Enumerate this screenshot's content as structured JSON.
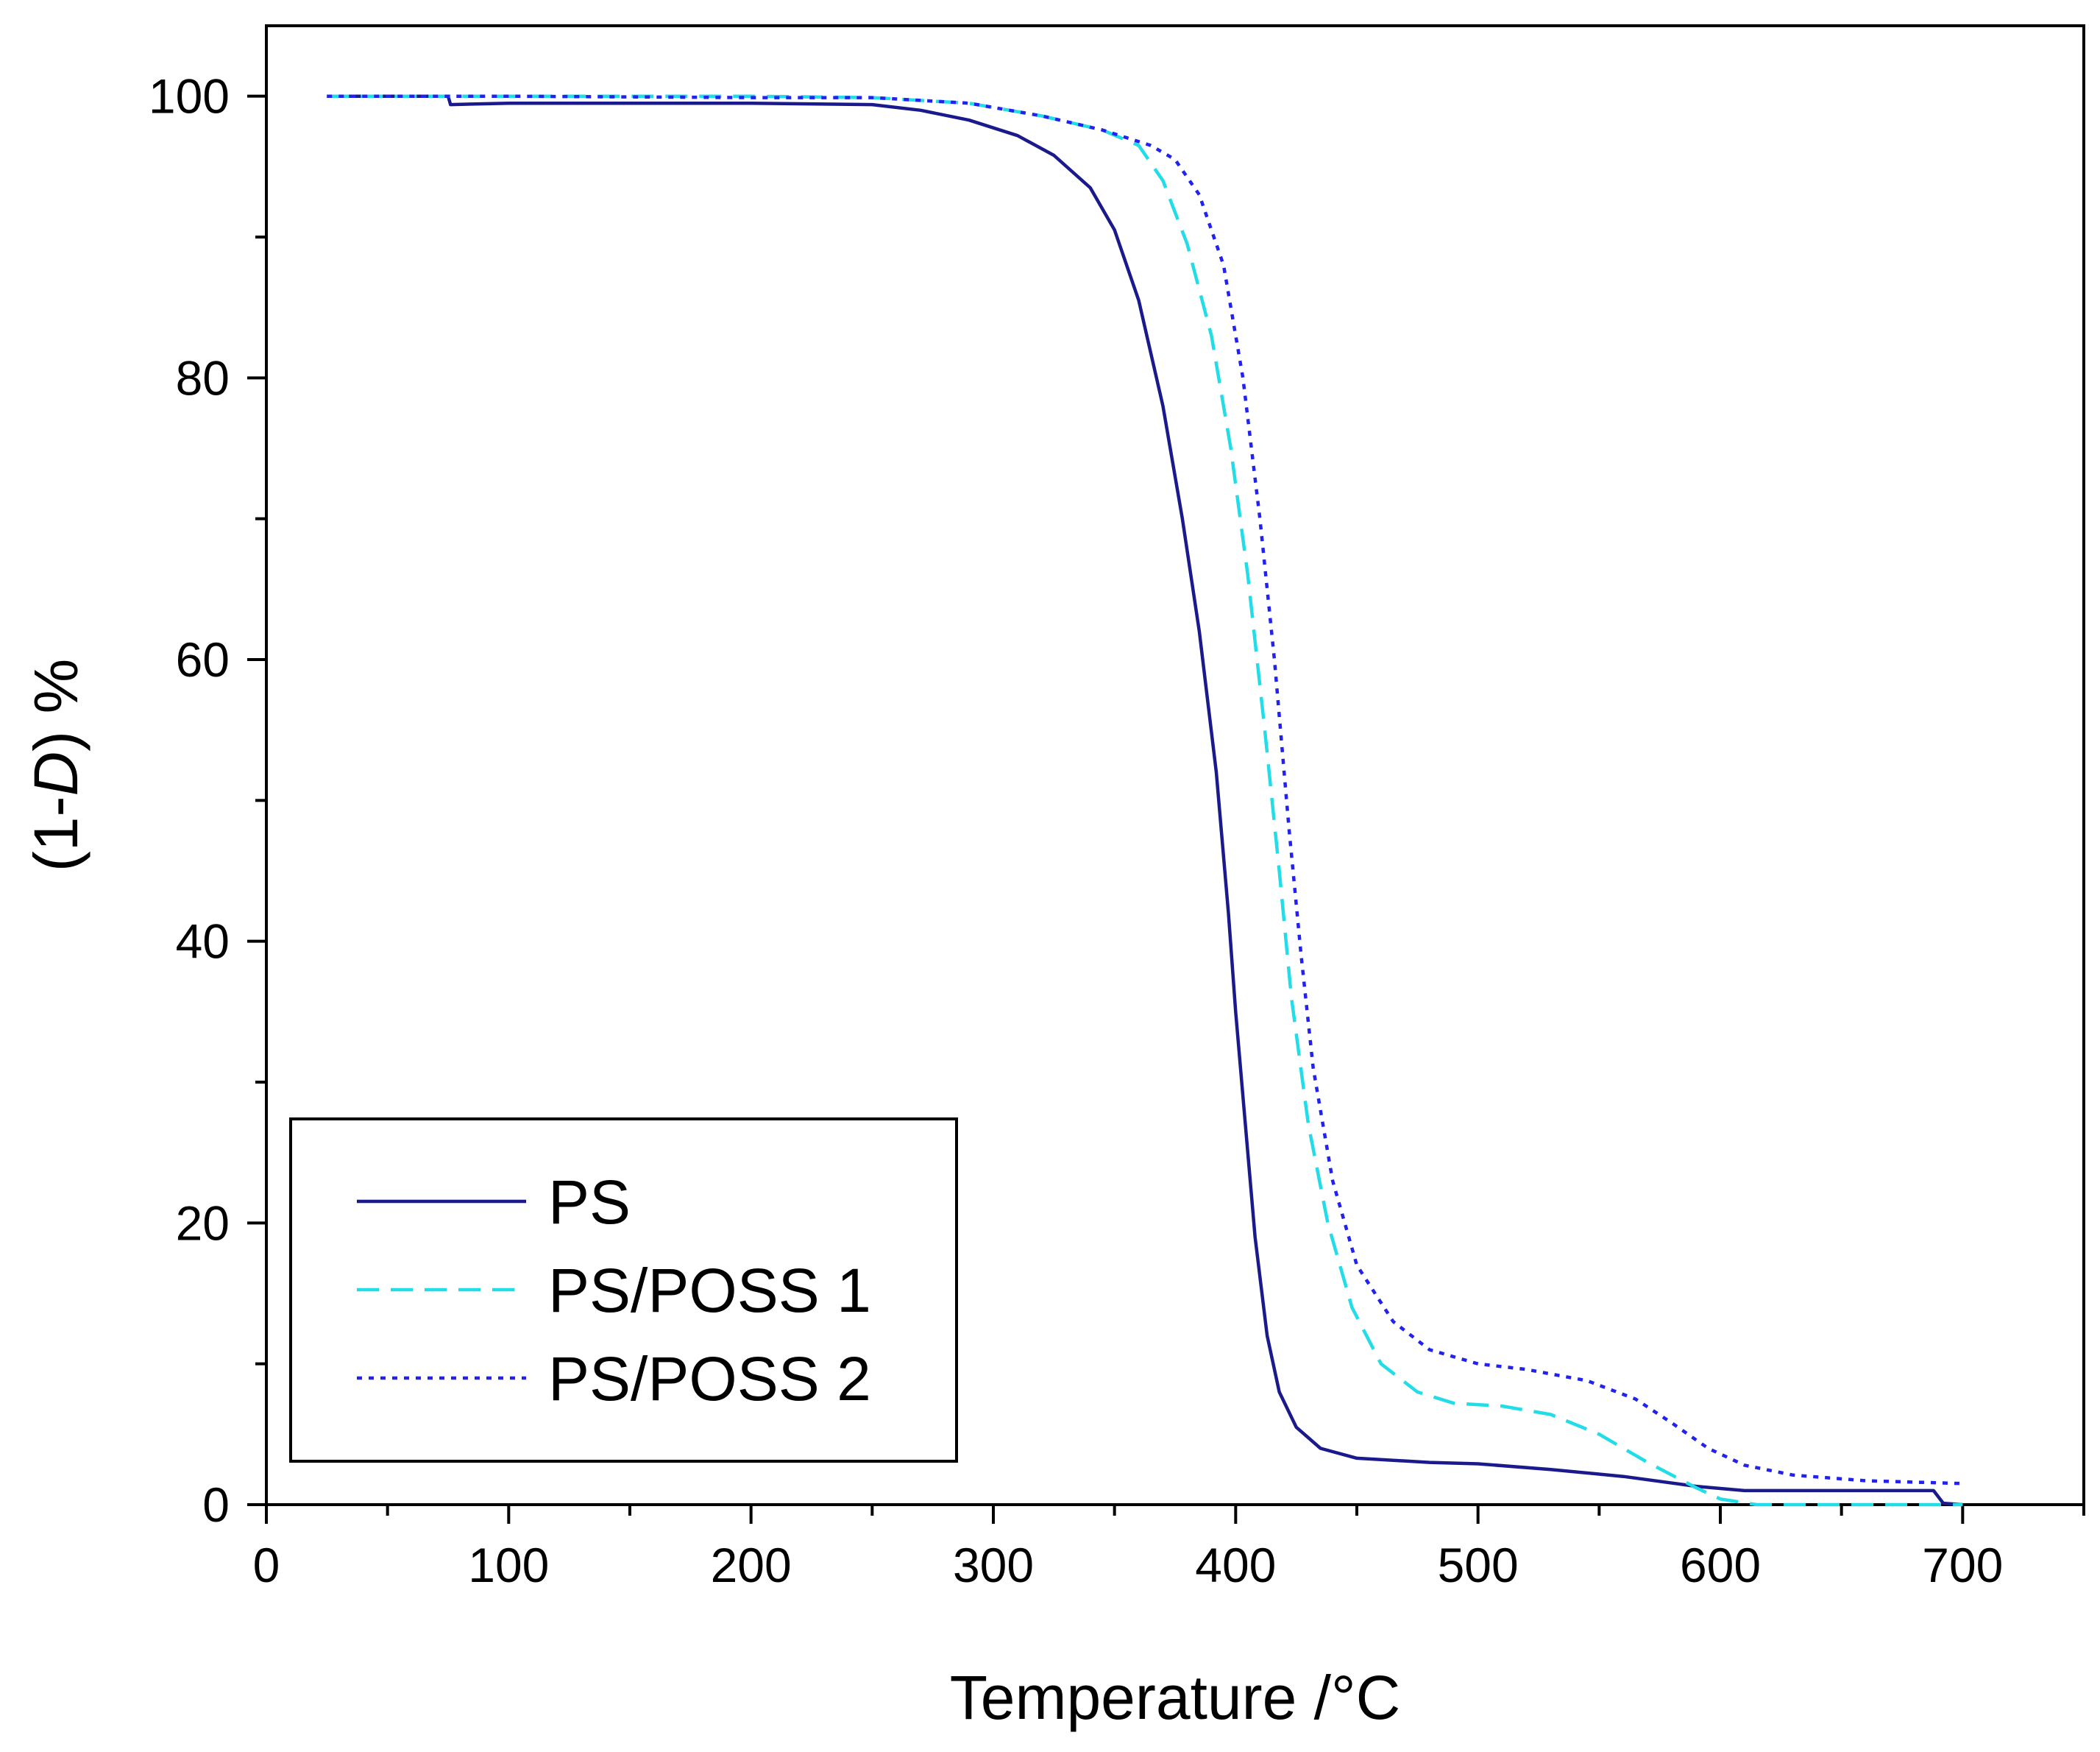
{
  "chart_data": {
    "type": "line",
    "title": "",
    "xlabel": "Temperature /°C",
    "ylabel": {
      "prefix": "(1-",
      "italic": "D",
      "suffix": ") %"
    },
    "xlim": [
      0,
      750
    ],
    "ylim": [
      0,
      105
    ],
    "xticks": [
      0,
      100,
      200,
      300,
      400,
      500,
      600,
      700
    ],
    "yticks": [
      0,
      20,
      40,
      60,
      80,
      100
    ],
    "x_minor_step": 50,
    "y_minor_step": 10,
    "grid": false,
    "legend_position": "bottom-left",
    "series": [
      {
        "name": "PS",
        "color": "#1a1a8c",
        "style": "solid",
        "points": [
          [
            25,
            100
          ],
          [
            75,
            100
          ],
          [
            76,
            99.4
          ],
          [
            100,
            99.5
          ],
          [
            200,
            99.5
          ],
          [
            250,
            99.4
          ],
          [
            270,
            99.0
          ],
          [
            290,
            98.3
          ],
          [
            310,
            97.2
          ],
          [
            325,
            95.8
          ],
          [
            340,
            93.5
          ],
          [
            350,
            90.5
          ],
          [
            360,
            85.5
          ],
          [
            370,
            78
          ],
          [
            378,
            70
          ],
          [
            385,
            62
          ],
          [
            392,
            52
          ],
          [
            397,
            42
          ],
          [
            400,
            35
          ],
          [
            404,
            27
          ],
          [
            408,
            19
          ],
          [
            413,
            12
          ],
          [
            418,
            8
          ],
          [
            425,
            5.5
          ],
          [
            435,
            4.0
          ],
          [
            450,
            3.3
          ],
          [
            480,
            3.0
          ],
          [
            500,
            2.9
          ],
          [
            530,
            2.5
          ],
          [
            560,
            2.0
          ],
          [
            590,
            1.3
          ],
          [
            610,
            1.0
          ],
          [
            650,
            1.0
          ],
          [
            688,
            1.0
          ],
          [
            692,
            0.1
          ],
          [
            700,
            0
          ]
        ]
      },
      {
        "name": "PS/POSS 1",
        "color": "#22dde8",
        "style": "dashed",
        "points": [
          [
            25,
            100
          ],
          [
            100,
            100
          ],
          [
            200,
            100
          ],
          [
            250,
            99.9
          ],
          [
            290,
            99.5
          ],
          [
            320,
            98.6
          ],
          [
            345,
            97.6
          ],
          [
            360,
            96.5
          ],
          [
            370,
            94
          ],
          [
            380,
            89.5
          ],
          [
            390,
            83
          ],
          [
            398,
            75
          ],
          [
            405,
            66
          ],
          [
            412,
            55
          ],
          [
            418,
            45
          ],
          [
            423,
            36
          ],
          [
            430,
            27
          ],
          [
            438,
            20
          ],
          [
            448,
            14
          ],
          [
            460,
            10
          ],
          [
            475,
            8
          ],
          [
            490,
            7.2
          ],
          [
            510,
            7.0
          ],
          [
            530,
            6.4
          ],
          [
            550,
            5.0
          ],
          [
            570,
            3.0
          ],
          [
            590,
            1.2
          ],
          [
            600,
            0.4
          ],
          [
            615,
            0
          ],
          [
            700,
            0
          ]
        ]
      },
      {
        "name": "PS/POSS 2",
        "color": "#2222ee",
        "style": "dotted",
        "points": [
          [
            25,
            100
          ],
          [
            100,
            100
          ],
          [
            200,
            99.9
          ],
          [
            250,
            99.9
          ],
          [
            290,
            99.5
          ],
          [
            320,
            98.6
          ],
          [
            345,
            97.6
          ],
          [
            365,
            96.5
          ],
          [
            375,
            95.5
          ],
          [
            385,
            93
          ],
          [
            395,
            88
          ],
          [
            403,
            80
          ],
          [
            410,
            70
          ],
          [
            416,
            60
          ],
          [
            422,
            48
          ],
          [
            427,
            39
          ],
          [
            432,
            31
          ],
          [
            440,
            23
          ],
          [
            450,
            17
          ],
          [
            465,
            13
          ],
          [
            480,
            11
          ],
          [
            500,
            10
          ],
          [
            520,
            9.6
          ],
          [
            545,
            8.8
          ],
          [
            565,
            7.5
          ],
          [
            580,
            5.8
          ],
          [
            595,
            4.0
          ],
          [
            610,
            2.8
          ],
          [
            630,
            2.1
          ],
          [
            660,
            1.7
          ],
          [
            700,
            1.5
          ]
        ]
      }
    ]
  }
}
